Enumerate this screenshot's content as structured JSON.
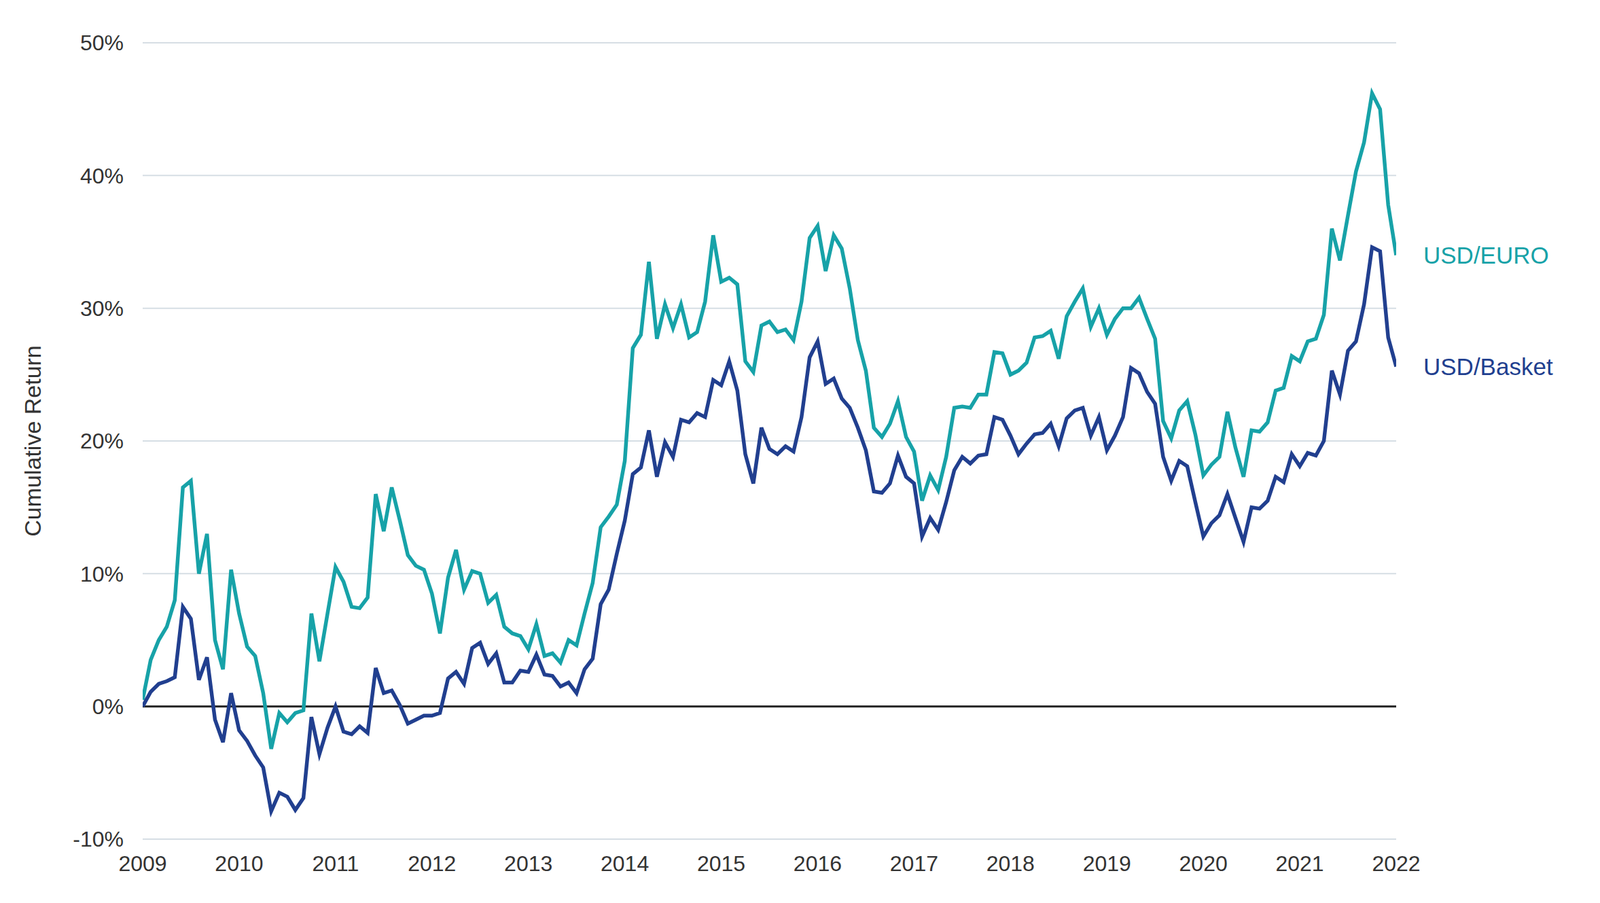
{
  "chart_data": {
    "type": "line",
    "y_label": "Cumulative Return",
    "grid": true,
    "xlim": [
      2009,
      2022
    ],
    "xticks": [
      2009,
      2010,
      2011,
      2012,
      2013,
      2014,
      2015,
      2016,
      2017,
      2018,
      2019,
      2020,
      2021,
      2022
    ],
    "ylim": [
      -10,
      50
    ],
    "yticks": [
      {
        "value": -10,
        "label": "-10%"
      },
      {
        "value": 0,
        "label": "0%"
      },
      {
        "value": 10,
        "label": "10%"
      },
      {
        "value": 20,
        "label": "20%"
      },
      {
        "value": 30,
        "label": "30%"
      },
      {
        "value": 40,
        "label": "40%"
      },
      {
        "value": 50,
        "label": "50%"
      }
    ],
    "x": [
      2009,
      2009.083,
      2009.167,
      2009.25,
      2009.333,
      2009.417,
      2009.5,
      2009.583,
      2009.667,
      2009.75,
      2009.833,
      2009.917,
      2010,
      2010.083,
      2010.167,
      2010.25,
      2010.333,
      2010.417,
      2010.5,
      2010.583,
      2010.667,
      2010.75,
      2010.833,
      2010.917,
      2011,
      2011.083,
      2011.167,
      2011.25,
      2011.333,
      2011.417,
      2011.5,
      2011.583,
      2011.667,
      2011.75,
      2011.833,
      2011.917,
      2012,
      2012.083,
      2012.167,
      2012.25,
      2012.333,
      2012.417,
      2012.5,
      2012.583,
      2012.667,
      2012.75,
      2012.833,
      2012.917,
      2013,
      2013.083,
      2013.167,
      2013.25,
      2013.333,
      2013.417,
      2013.5,
      2013.583,
      2013.667,
      2013.75,
      2013.833,
      2013.917,
      2014,
      2014.083,
      2014.167,
      2014.25,
      2014.333,
      2014.417,
      2014.5,
      2014.583,
      2014.667,
      2014.75,
      2014.833,
      2014.917,
      2015,
      2015.083,
      2015.167,
      2015.25,
      2015.333,
      2015.417,
      2015.5,
      2015.583,
      2015.667,
      2015.75,
      2015.833,
      2015.917,
      2016,
      2016.083,
      2016.167,
      2016.25,
      2016.333,
      2016.417,
      2016.5,
      2016.583,
      2016.667,
      2016.75,
      2016.833,
      2016.917,
      2017,
      2017.083,
      2017.167,
      2017.25,
      2017.333,
      2017.417,
      2017.5,
      2017.583,
      2017.667,
      2017.75,
      2017.833,
      2017.917,
      2018,
      2018.083,
      2018.167,
      2018.25,
      2018.333,
      2018.417,
      2018.5,
      2018.583,
      2018.667,
      2018.75,
      2018.833,
      2018.917,
      2019,
      2019.083,
      2019.167,
      2019.25,
      2019.333,
      2019.417,
      2019.5,
      2019.583,
      2019.667,
      2019.75,
      2019.833,
      2019.917,
      2020,
      2020.083,
      2020.167,
      2020.25,
      2020.333,
      2020.417,
      2020.5,
      2020.583,
      2020.667,
      2020.75,
      2020.833,
      2020.917,
      2021,
      2021.083,
      2021.167,
      2021.25,
      2021.333,
      2021.417,
      2021.5,
      2021.583,
      2021.667,
      2021.75,
      2021.833,
      2021.917,
      2022
    ],
    "series": [
      {
        "name": "USD/EURO",
        "color": "#17a2a8",
        "values": [
          0.5,
          3.5,
          5,
          6,
          8,
          16.5,
          17,
          10,
          13,
          5,
          2.8,
          10.3,
          7,
          4.5,
          3.8,
          1,
          -3.2,
          -0.5,
          -1.2,
          -0.5,
          -0.3,
          7,
          3.4,
          7,
          10.5,
          9.4,
          7.5,
          7.4,
          8.2,
          16,
          13.2,
          16.5,
          14,
          11.4,
          10.6,
          10.3,
          8.5,
          5.5,
          9.7,
          11.8,
          8.8,
          10.2,
          10,
          7.8,
          8.4,
          6,
          5.5,
          5.3,
          4.3,
          6.2,
          3.8,
          4,
          3.3,
          5,
          4.6,
          7,
          9.3,
          13.5,
          14.3,
          15.2,
          18.5,
          27,
          28,
          33.5,
          27.7,
          30.3,
          28.5,
          30.3,
          27.8,
          28.2,
          30.5,
          35.5,
          32,
          32.3,
          31.8,
          26,
          25.2,
          28.7,
          29,
          28.2,
          28.4,
          27.6,
          30.5,
          35.3,
          36.2,
          32.8,
          35.5,
          34.5,
          31.5,
          27.6,
          25.3,
          21,
          20.3,
          21.3,
          23,
          20.3,
          19.2,
          15.5,
          17.4,
          16.3,
          18.8,
          22.5,
          22.6,
          22.5,
          23.5,
          23.5,
          26.7,
          26.6,
          25,
          25.3,
          25.9,
          27.8,
          27.9,
          28.3,
          26.2,
          29.4,
          30.5,
          31.5,
          28.6,
          30,
          28,
          29.2,
          30,
          30,
          30.8,
          29.2,
          27.7,
          21.5,
          20.2,
          22.3,
          23,
          20.5,
          17.4,
          18.2,
          18.8,
          22.2,
          19.5,
          17.3,
          20.8,
          20.7,
          21.4,
          23.8,
          24,
          26.4,
          26,
          27.5,
          27.7,
          29.5,
          36,
          33.6,
          37,
          40.3,
          42.5,
          46.2,
          45,
          37.8,
          34
        ]
      },
      {
        "name": "USD/Basket",
        "color": "#213f8f",
        "values": [
          0,
          1.1,
          1.7,
          1.9,
          2.2,
          7.5,
          6.6,
          2,
          3.7,
          -1,
          -2.7,
          1,
          -1.8,
          -2.6,
          -3.7,
          -4.6,
          -7.9,
          -6.5,
          -6.8,
          -7.8,
          -6.9,
          -0.8,
          -3.6,
          -1.6,
          0,
          -1.9,
          -2.1,
          -1.5,
          -2,
          2.9,
          1,
          1.2,
          0.1,
          -1.3,
          -1,
          -0.7,
          -0.7,
          -0.5,
          2.1,
          2.6,
          1.7,
          4.4,
          4.8,
          3.2,
          4,
          1.8,
          1.8,
          2.7,
          2.6,
          3.9,
          2.4,
          2.3,
          1.5,
          1.8,
          1,
          2.8,
          3.6,
          7.7,
          8.8,
          11.5,
          14,
          17.5,
          18,
          20.8,
          17.3,
          19.9,
          18.8,
          21.6,
          21.4,
          22.1,
          21.8,
          24.6,
          24.2,
          26,
          23.8,
          19,
          16.8,
          21,
          19.4,
          19,
          19.6,
          19.2,
          21.8,
          26.3,
          27.5,
          24.3,
          24.7,
          23.2,
          22.5,
          21,
          19.3,
          16.2,
          16.1,
          16.8,
          18.9,
          17.3,
          16.8,
          12.8,
          14.2,
          13.3,
          15.4,
          17.8,
          18.8,
          18.3,
          18.9,
          19,
          21.8,
          21.6,
          20.4,
          19,
          19.8,
          20.5,
          20.6,
          21.3,
          19.6,
          21.7,
          22.3,
          22.5,
          20.4,
          21.8,
          19.3,
          20.4,
          21.8,
          25.5,
          25.1,
          23.7,
          22.8,
          18.8,
          17,
          18.5,
          18.1,
          15.4,
          12.8,
          13.8,
          14.4,
          16,
          14.2,
          12.4,
          15,
          14.9,
          15.5,
          17.3,
          16.9,
          19,
          18.1,
          19.1,
          18.9,
          20,
          25.3,
          23.5,
          26.8,
          27.5,
          30.3,
          34.6,
          34.3,
          27.8,
          25.6
        ]
      }
    ]
  }
}
